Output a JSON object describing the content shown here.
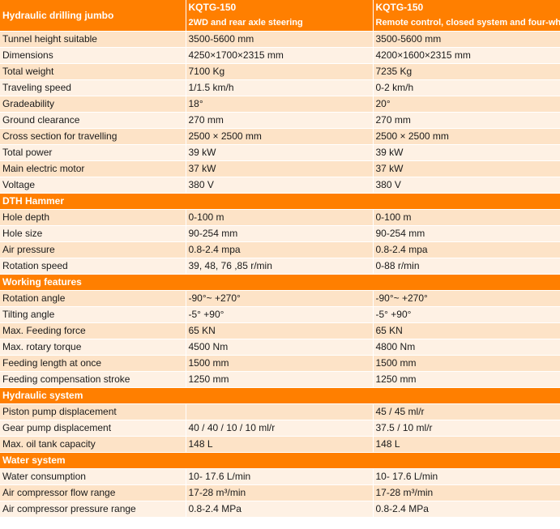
{
  "header": {
    "title": "Hydraulic drilling jumbo",
    "col2_model": "KQTG-150",
    "col2_desc": "2WD and rear axle steering",
    "col3_model": "KQTG-150",
    "col3_desc": "Remote control, closed system and four-wheel drive"
  },
  "sections": [
    {
      "title": "",
      "rows": [
        [
          "Tunnel height suitable",
          "3500-5600 mm",
          "3500-5600 mm"
        ],
        [
          "Dimensions",
          "4250×1700×2315 mm",
          "4200×1600×2315 mm"
        ],
        [
          "Total weight",
          "7100 Kg",
          "7235 Kg"
        ],
        [
          "Traveling speed",
          "1/1.5 km/h",
          "0-2 km/h"
        ],
        [
          "Gradeability",
          "18°",
          "20°"
        ],
        [
          "Ground clearance",
          "270 mm",
          "270 mm"
        ],
        [
          "Cross section for travelling",
          "2500 × 2500 mm",
          "2500 × 2500 mm"
        ],
        [
          "Total power",
          "39 kW",
          "39 kW"
        ],
        [
          "Main electric motor",
          "37 kW",
          "37 kW"
        ],
        [
          "Voltage",
          "380 V",
          "380 V"
        ]
      ]
    },
    {
      "title": "DTH Hammer",
      "rows": [
        [
          "Hole depth",
          "0-100 m",
          "0-100 m"
        ],
        [
          "Hole size",
          "90-254 mm",
          "90-254 mm"
        ],
        [
          "Air pressure",
          "0.8-2.4 mpa",
          "0.8-2.4 mpa"
        ],
        [
          "Rotation speed",
          "39, 48, 76 ,85 r/min",
          "0-88 r/min"
        ]
      ]
    },
    {
      "title": "Working features",
      "rows": [
        [
          "Rotation angle",
          "-90°~ +270°",
          "-90°~ +270°"
        ],
        [
          "Tilting angle",
          "-5°   +90°",
          "-5°   +90°"
        ],
        [
          "Max. Feeding force",
          "65 KN",
          "65 KN"
        ],
        [
          "Max. rotary torque",
          "4500 Nm",
          "4800 Nm"
        ],
        [
          "Feeding length at once",
          "1500 mm",
          "1500 mm"
        ],
        [
          "Feeding compensation stroke",
          "1250 mm",
          "1250 mm"
        ]
      ]
    },
    {
      "title": "Hydraulic system",
      "rows": [
        [
          "Piston pump displacement",
          "",
          "45 / 45 ml/r"
        ],
        [
          "Gear pump displacement",
          "40 / 40 / 10 / 10  ml/r",
          "37.5 / 10 ml/r"
        ],
        [
          "Max. oil tank capacity",
          "148 L",
          "148 L"
        ]
      ]
    },
    {
      "title": "Water system",
      "rows": [
        [
          "Water consumption",
          "10- 17.6 L/min",
          "10- 17.6 L/min"
        ],
        [
          "Air compressor flow range",
          "17-28 m³/min",
          "17-28 m³/min"
        ],
        [
          "Air compressor pressure range",
          "0.8-2.4 MPa",
          "0.8-2.4 MPa"
        ]
      ]
    }
  ]
}
